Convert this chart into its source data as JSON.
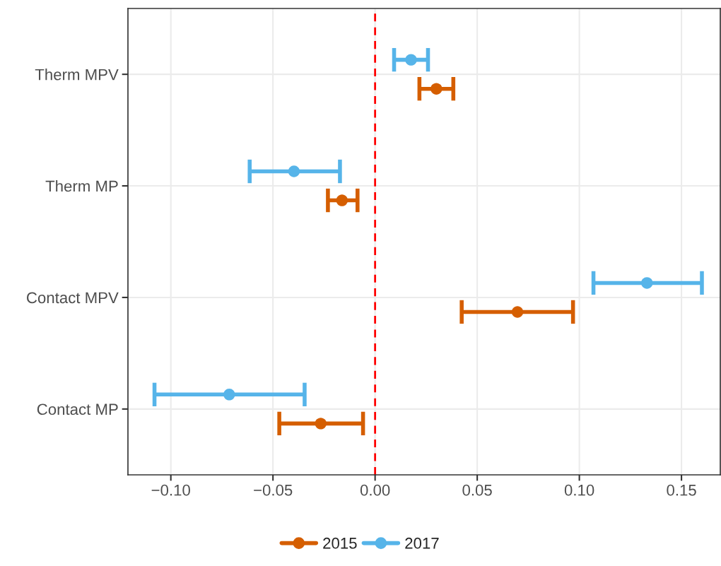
{
  "chart_data": {
    "type": "scatter",
    "orientation": "horizontal",
    "categories": [
      "Therm MPV",
      "Therm MP",
      "Contact MPV",
      "Contact MP"
    ],
    "series": [
      {
        "name": "2015",
        "color": "#d55e00",
        "values": [
          0.03,
          -0.0162,
          0.0697,
          -0.0266
        ],
        "errors": [
          [
            0.0217,
            0.0383
          ],
          [
            -0.0231,
            -0.0086
          ],
          [
            0.0424,
            0.0969
          ],
          [
            -0.0469,
            -0.0059
          ]
        ]
      },
      {
        "name": "2017",
        "color": "#56b4e9",
        "values": [
          0.0176,
          -0.0397,
          0.1331,
          -0.0714
        ],
        "errors": [
          [
            0.0093,
            0.0259
          ],
          [
            -0.0614,
            -0.0172
          ],
          [
            0.1069,
            0.16
          ],
          [
            -0.108,
            -0.0345
          ]
        ]
      }
    ],
    "xlim": [
      -0.121,
      0.169
    ],
    "xticks": [
      {
        "value": -0.1,
        "label": "−0.10"
      },
      {
        "value": -0.05,
        "label": "−0.05"
      },
      {
        "value": 0,
        "label": "0.00"
      },
      {
        "value": 0.05,
        "label": "0.05"
      },
      {
        "value": 0.1,
        "label": "0.10"
      },
      {
        "value": 0.15,
        "label": "0.15"
      }
    ],
    "ref_lines": [
      {
        "axis": "x",
        "value": 0,
        "color": "#ff0000",
        "line_style": "dashed"
      }
    ],
    "grid": true,
    "legend": "bottom",
    "marker": "circle"
  }
}
